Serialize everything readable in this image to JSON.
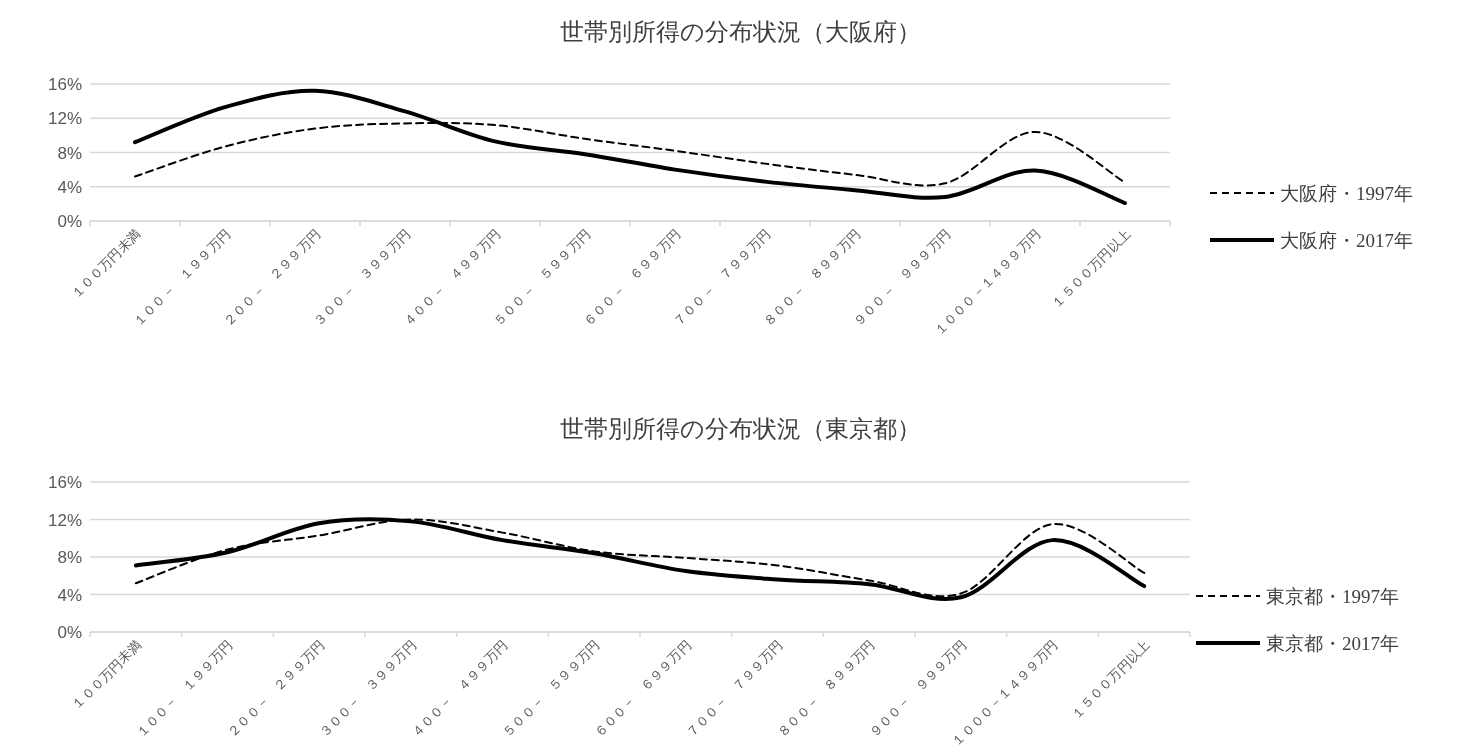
{
  "chart_data": [
    {
      "type": "line",
      "title": "世帯別所得の分布状況（大阪府）",
      "categories": [
        "１００万円未満",
        "１００－　１９９万円",
        "２００－　２９９万円",
        "３００－　３９９万円",
        "４００－　４９９万円",
        "５００－　５９９万円",
        "６００－　６９９万円",
        "７００－　７９９万円",
        "８００－　８９９万円",
        "９００－　９９９万円",
        "１０００－１４９９万円",
        "１５００万円以上"
      ],
      "series": [
        {
          "name": "大阪府・1997年",
          "color": "#000000",
          "line_style": "dashed",
          "values": [
            5.2,
            8.7,
            10.8,
            11.4,
            11.2,
            9.6,
            8.2,
            6.7,
            5.4,
            4.4,
            10.4,
            4.5
          ]
        },
        {
          "name": "大阪府・2017年",
          "color": "#000000",
          "line_style": "solid",
          "values": [
            9.2,
            13.3,
            15.2,
            12.8,
            9.3,
            7.8,
            6.0,
            4.6,
            3.6,
            2.8,
            5.9,
            2.1
          ]
        }
      ],
      "ylim": [
        0,
        16
      ],
      "yticks": [
        {
          "value": 0,
          "label": "0%"
        },
        {
          "value": 4,
          "label": "4%"
        },
        {
          "value": 8,
          "label": "8%"
        },
        {
          "value": 12,
          "label": "12%"
        },
        {
          "value": 16,
          "label": "16%"
        }
      ],
      "grid": "y",
      "legend": "right",
      "marker": "none"
    },
    {
      "type": "line",
      "title": "世帯別所得の分布状況（東京都）",
      "categories": [
        "１００万円未満",
        "１００－　１９９万円",
        "２００－　２９９万円",
        "３００－　３９９万円",
        "４００－　４９９万円",
        "５００－　５９９万円",
        "６００－　６９９万円",
        "７００－　７９９万円",
        "８００－　８９９万円",
        "９００－　９９９万円",
        "１０００－１４９９万円",
        "１５００万円以上"
      ],
      "series": [
        {
          "name": "東京都・1997年",
          "color": "#000000",
          "line_style": "dashed",
          "values": [
            5.2,
            8.8,
            10.3,
            12.0,
            10.6,
            8.6,
            7.9,
            7.1,
            5.5,
            4.1,
            11.5,
            6.3
          ]
        },
        {
          "name": "東京都・2017年",
          "color": "#000000",
          "line_style": "solid",
          "values": [
            7.1,
            8.5,
            11.6,
            11.8,
            9.8,
            8.4,
            6.5,
            5.6,
            5.1,
            3.7,
            9.8,
            4.9
          ]
        }
      ],
      "ylim": [
        0,
        16
      ],
      "yticks": [
        {
          "value": 0,
          "label": "0%"
        },
        {
          "value": 4,
          "label": "4%"
        },
        {
          "value": 8,
          "label": "8%"
        },
        {
          "value": 12,
          "label": "12%"
        },
        {
          "value": 16,
          "label": "16%"
        }
      ],
      "grid": "y",
      "legend": "right",
      "marker": "none"
    }
  ]
}
